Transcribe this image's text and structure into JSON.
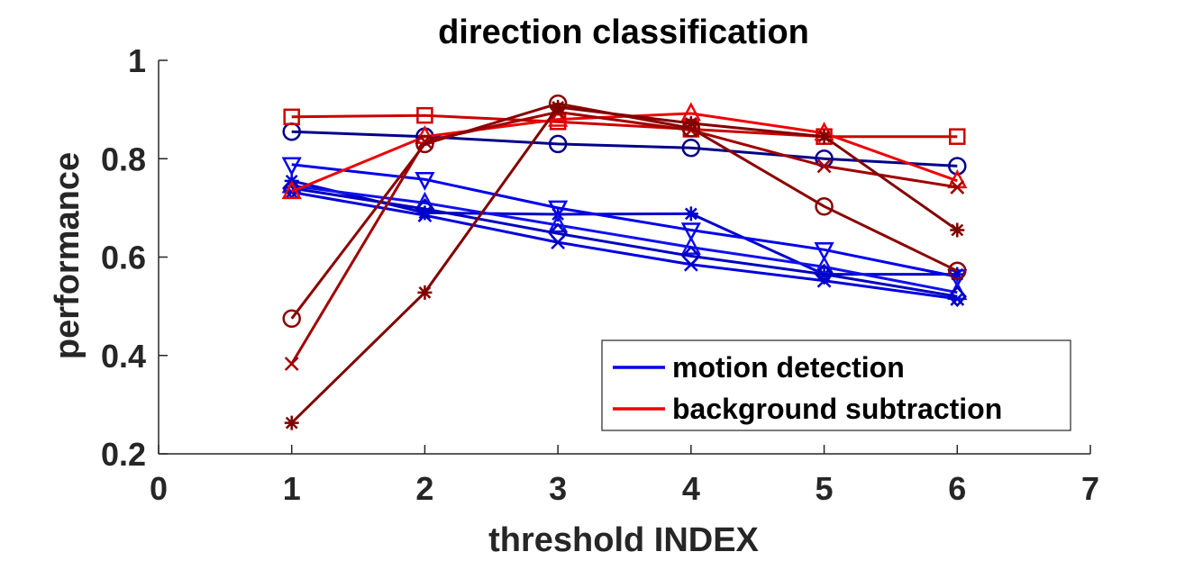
{
  "chart_data": {
    "type": "line",
    "title": "direction classification",
    "xlabel": "threshold INDEX",
    "ylabel": "performance",
    "xlim": [
      0,
      7
    ],
    "ylim": [
      0.2,
      1
    ],
    "xticks": [
      "0",
      "1",
      "2",
      "3",
      "4",
      "5",
      "6",
      "7"
    ],
    "yticks": [
      "0.2",
      "0.4",
      "0.6",
      "0.8",
      "1"
    ],
    "x": [
      1,
      2,
      3,
      4,
      5,
      6
    ],
    "legend": {
      "position": "inside-lower-right",
      "entries": [
        {
          "label": "motion detection",
          "color": "#0000ee"
        },
        {
          "label": "background subtraction",
          "color": "#ee0000"
        }
      ]
    },
    "series": [
      {
        "color": "#00008b",
        "marker": "circle",
        "values": [
          0.855,
          0.845,
          0.83,
          0.822,
          0.8,
          0.785
        ]
      },
      {
        "color": "#0000cc",
        "marker": "asterisk",
        "values": [
          0.755,
          0.69,
          0.687,
          0.688,
          0.565,
          0.565
        ]
      },
      {
        "color": "#0000ee",
        "marker": "triangle-down",
        "values": [
          0.788,
          0.758,
          0.7,
          0.655,
          0.615,
          0.56
        ]
      },
      {
        "color": "#1010f0",
        "marker": "triangle-up",
        "values": [
          0.745,
          0.71,
          0.665,
          0.62,
          0.58,
          0.528
        ]
      },
      {
        "color": "#0000dd",
        "marker": "x",
        "values": [
          0.732,
          0.685,
          0.63,
          0.585,
          0.552,
          0.515
        ]
      },
      {
        "color": "#0000c0",
        "marker": "diamond",
        "values": [
          0.74,
          0.698,
          0.648,
          0.602,
          0.565,
          0.52
        ]
      },
      {
        "color": "#cc0000",
        "marker": "square",
        "values": [
          0.885,
          0.888,
          0.875,
          0.86,
          0.845,
          0.845
        ]
      },
      {
        "color": "#ee0000",
        "marker": "triangle-up",
        "values": [
          0.733,
          0.845,
          0.88,
          0.892,
          0.852,
          0.755
        ]
      },
      {
        "color": "#a00000",
        "marker": "x",
        "values": [
          0.383,
          0.835,
          0.895,
          0.858,
          0.785,
          0.742
        ]
      },
      {
        "color": "#8b0000",
        "marker": "circle",
        "values": [
          0.475,
          0.83,
          0.912,
          0.862,
          0.703,
          0.572
        ]
      },
      {
        "color": "#800000",
        "marker": "asterisk",
        "values": [
          0.263,
          0.528,
          0.905,
          0.872,
          0.845,
          0.655
        ]
      }
    ]
  }
}
